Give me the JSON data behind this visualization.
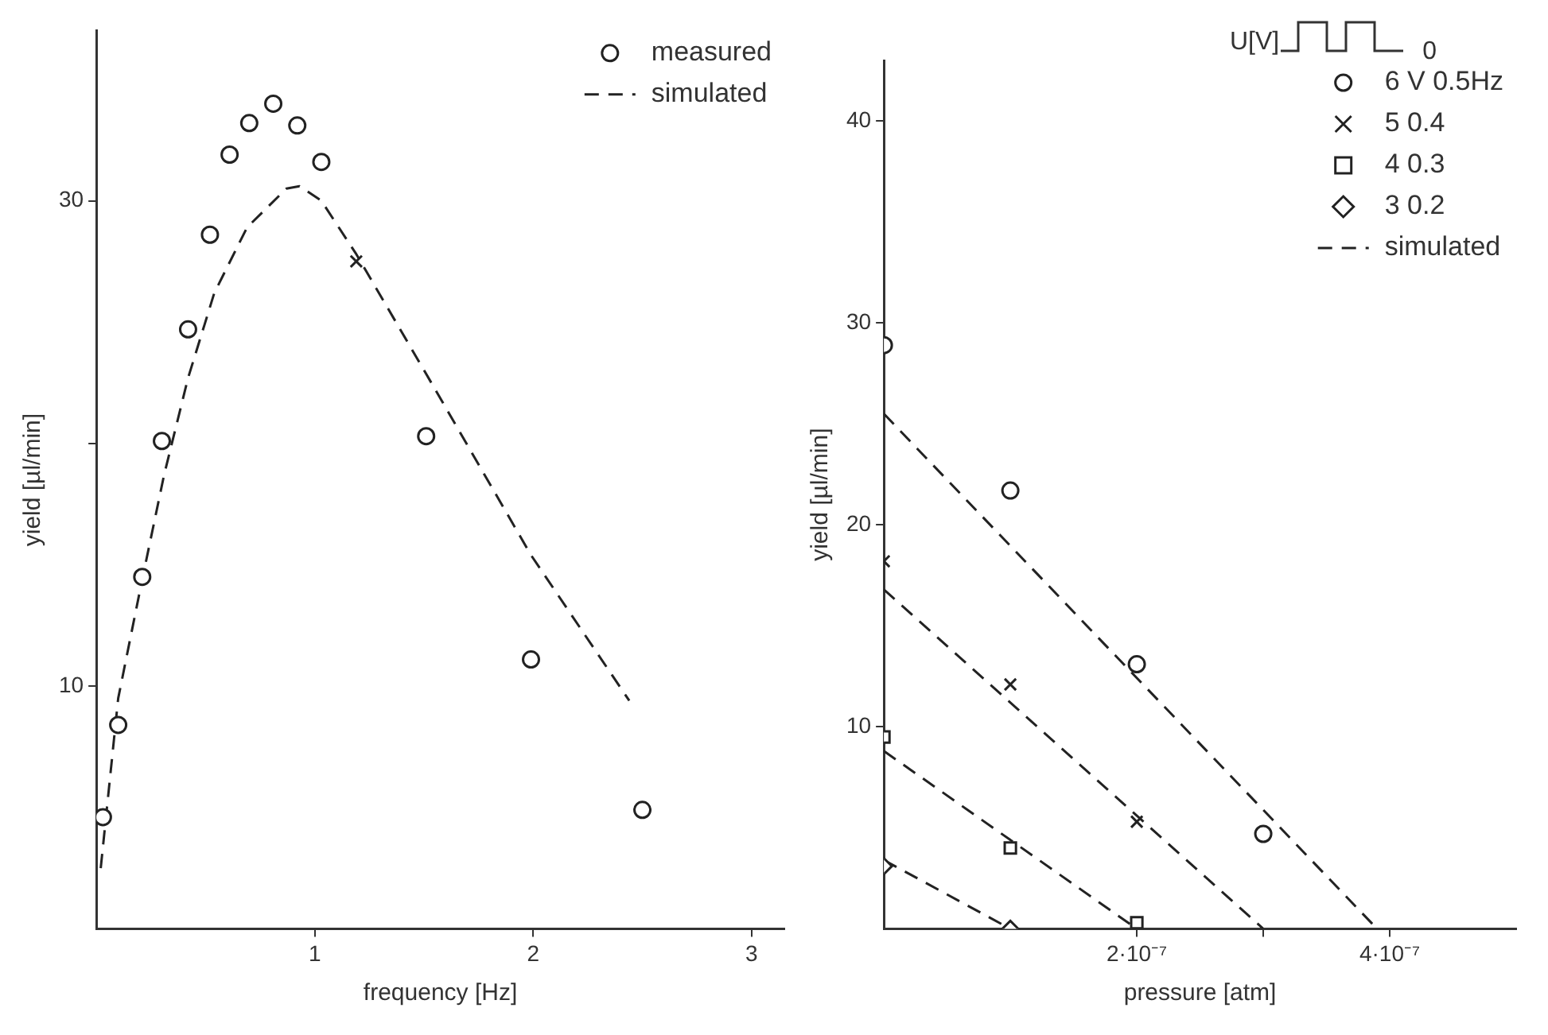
{
  "chart_data": [
    {
      "type": "scatter",
      "xlabel": "frequency [Hz]",
      "ylabel": "yield [µl/min]",
      "xlim": [
        0,
        3.15
      ],
      "ylim": [
        0,
        37
      ],
      "xticks": [
        1,
        2,
        3
      ],
      "yticks": [
        10,
        {
          "value": 20,
          "label": null
        },
        30
      ],
      "legend": "top right",
      "series": [
        {
          "name": "measured",
          "type": "scatter",
          "marker": "circle",
          "color": "#222222",
          "x": [
            0.03,
            0.1,
            0.21,
            0.3,
            0.42,
            0.52,
            0.61,
            0.7,
            0.81,
            0.92,
            1.03,
            1.51,
            1.99,
            2.5
          ],
          "values": [
            4.6,
            8.4,
            14.5,
            20.1,
            24.7,
            28.6,
            31.9,
            33.2,
            34.0,
            33.1,
            31.6,
            20.3,
            11.1,
            4.9
          ]
        },
        {
          "type": "scatter",
          "marker": "cross",
          "color": "#222222",
          "x": [
            1.19
          ],
          "values": [
            27.5
          ]
        },
        {
          "name": "simulated",
          "type": "line",
          "marker": "none",
          "line_style": "dashed",
          "color": "#222222",
          "x": [
            0.02,
            0.1,
            0.21,
            0.31,
            0.42,
            0.54,
            0.69,
            0.87,
            0.93,
            1.03,
            1.19,
            1.54,
            1.99,
            2.44
          ],
          "values": [
            2.5,
            9.5,
            14.4,
            18.7,
            22.7,
            26.2,
            28.9,
            30.5,
            30.6,
            30.0,
            27.8,
            22.4,
            15.4,
            9.4
          ]
        }
      ]
    },
    {
      "type": "scatter",
      "xlabel": "pressure [atm]",
      "ylabel": "yield [µl/min]",
      "xlim": [
        0,
        5e-07
      ],
      "ylim": [
        0,
        43
      ],
      "xticks": [
        {
          "value": 2e-07,
          "label": "2·10⁻⁷"
        },
        {
          "value": 3e-07,
          "label": null
        },
        {
          "value": 4e-07,
          "label": "4·10⁻⁷"
        }
      ],
      "yticks": [
        10,
        20,
        30,
        40
      ],
      "legend": "top right",
      "annotations": [
        "U[V]",
        "0"
      ],
      "series": [
        {
          "name": "6 V 0.5Hz",
          "type": "scatter",
          "marker": "circle",
          "color": "#222222",
          "x": [
            0,
            1e-07,
            2e-07,
            3e-07
          ],
          "values": [
            28.9,
            21.7,
            13.1,
            4.7
          ]
        },
        {
          "name": "5 0.4",
          "type": "scatter",
          "marker": "cross",
          "color": "#222222",
          "x": [
            0,
            1e-07,
            2e-07
          ],
          "values": [
            18.2,
            12.1,
            5.3
          ]
        },
        {
          "name": "4 0.3",
          "type": "scatter",
          "marker": "square",
          "color": "#222222",
          "x": [
            0,
            1e-07,
            2e-07
          ],
          "values": [
            9.5,
            4.0,
            0.3
          ]
        },
        {
          "name": "3 0.2",
          "type": "scatter",
          "marker": "diamond",
          "color": "#222222",
          "x": [
            0,
            1e-07
          ],
          "values": [
            3.1,
            0
          ]
        },
        {
          "name": "simulated",
          "type": "line",
          "marker": "none",
          "line_style": "dashed",
          "color": "#222222",
          "x": [
            0,
            3.9e-07
          ],
          "values": [
            25.5,
            0
          ]
        },
        {
          "type": "line",
          "marker": "none",
          "line_style": "dashed",
          "color": "#222222",
          "x": [
            0,
            3e-07
          ],
          "values": [
            16.8,
            0
          ]
        },
        {
          "type": "line",
          "marker": "none",
          "line_style": "dashed",
          "color": "#222222",
          "x": [
            0,
            2e-07
          ],
          "values": [
            8.8,
            0
          ]
        },
        {
          "type": "line",
          "marker": "none",
          "line_style": "dashed",
          "color": "#222222",
          "x": [
            0,
            1e-07
          ],
          "values": [
            3.4,
            0
          ]
        }
      ]
    }
  ]
}
